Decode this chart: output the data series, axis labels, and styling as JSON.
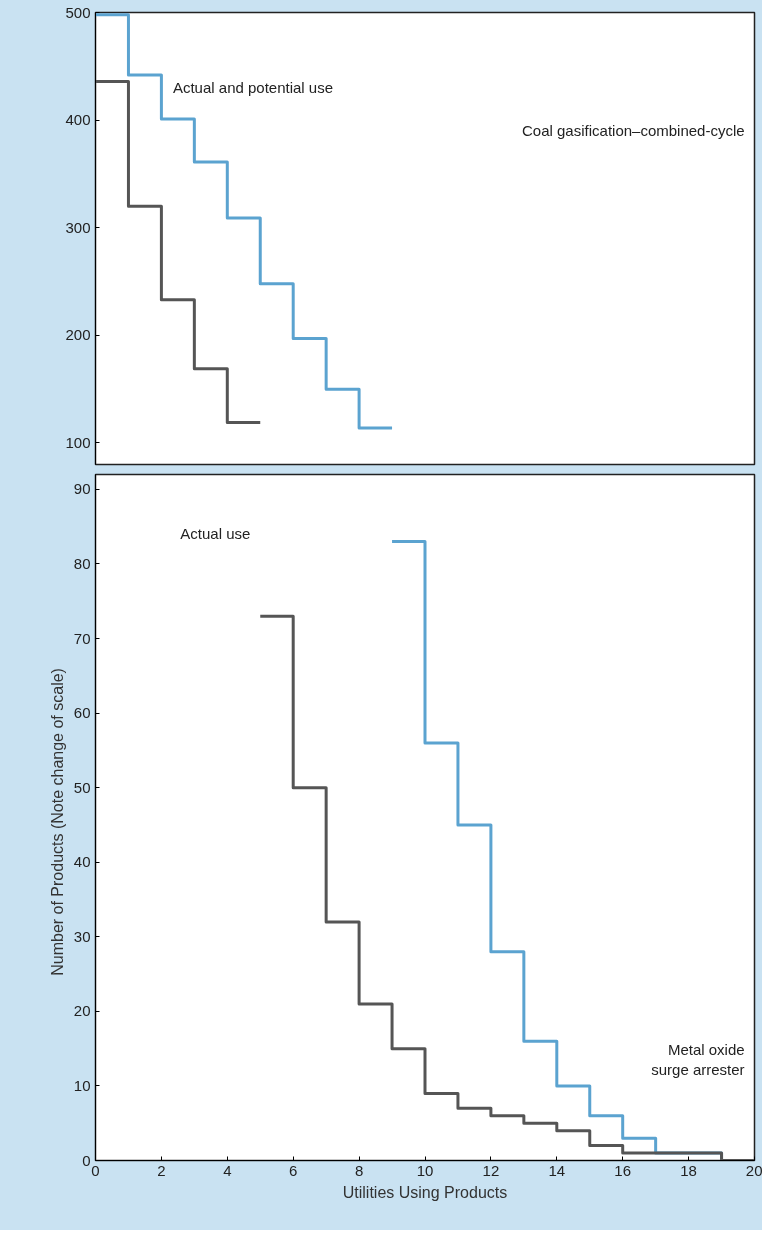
{
  "chart_data": [
    {
      "type": "step",
      "xlim": [
        0,
        20
      ],
      "ylim": [
        80,
        500
      ],
      "yticks": [
        100,
        200,
        300,
        400,
        500
      ],
      "tick_labels": "y",
      "grid": false,
      "series": [
        {
          "name": "Actual and potential use",
          "color": "#5ba3d0",
          "x": [
            0,
            1,
            2,
            3,
            4,
            5,
            6,
            7,
            8,
            9
          ],
          "values": [
            498,
            442,
            401,
            361,
            309,
            248,
            197,
            150,
            114,
            114
          ]
        },
        {
          "color": "#555555",
          "x": [
            0,
            1,
            2,
            3,
            4,
            5
          ],
          "values": [
            436,
            320,
            233,
            169,
            119,
            119
          ]
        }
      ],
      "annotations": [
        "Coal gasification–combined-cycle"
      ]
    },
    {
      "type": "step",
      "xlim": [
        0,
        20
      ],
      "ylim": [
        0,
        92
      ],
      "xticks": [
        0,
        2,
        4,
        6,
        8,
        10,
        12,
        14,
        16,
        18,
        20
      ],
      "yticks": [
        0,
        10,
        20,
        30,
        40,
        50,
        60,
        70,
        80,
        90
      ],
      "grid": false,
      "xlabel": "Utilities Using Products",
      "ylabel": "Number of Products   (Note change of scale)",
      "series": [
        {
          "color": "#5ba3d0",
          "x": [
            9,
            10,
            11,
            12,
            13,
            14,
            15,
            16,
            17,
            18,
            19,
            20
          ],
          "values": [
            83,
            56,
            45,
            28,
            16,
            10,
            6,
            3,
            1,
            1,
            0,
            0
          ]
        },
        {
          "name": "Actual use",
          "color": "#555555",
          "x": [
            5,
            6,
            7,
            8,
            9,
            10,
            11,
            12,
            13,
            14,
            15,
            16,
            17,
            18,
            19,
            20
          ],
          "values": [
            73,
            50,
            32,
            21,
            15,
            9,
            7,
            6,
            5,
            4,
            2,
            1,
            1,
            1,
            0,
            0
          ]
        }
      ],
      "annotations": [
        "Metal oxide\nsurge arrester"
      ]
    }
  ]
}
